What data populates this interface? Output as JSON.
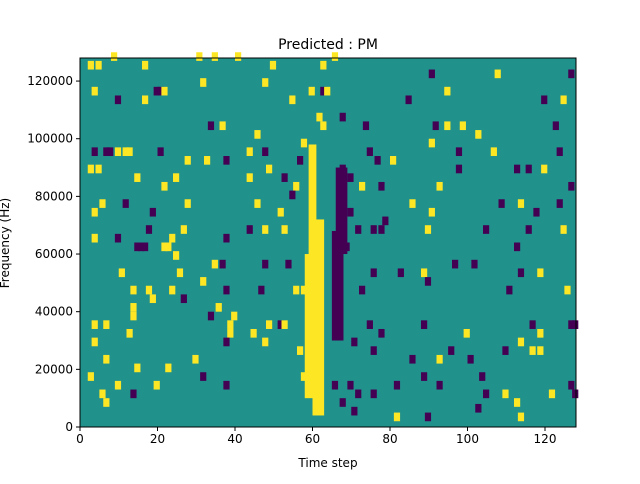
{
  "chart_data": {
    "type": "heatmap",
    "title": "Predicted : PM",
    "xlabel": "Time step",
    "ylabel": "Frequency (Hz)",
    "xlim": [
      0,
      128
    ],
    "ylim": [
      0,
      128000
    ],
    "x_ticks": [
      0,
      20,
      40,
      60,
      80,
      100,
      120
    ],
    "y_ticks": [
      0,
      20000,
      40000,
      60000,
      80000,
      100000,
      120000
    ],
    "x_tick_labels": [
      "0",
      "20",
      "40",
      "60",
      "80",
      "100",
      "120"
    ],
    "y_tick_labels": [
      "0",
      "20000",
      "40000",
      "60000",
      "80000",
      "100000",
      "120000"
    ],
    "grid": false,
    "background_value": 0,
    "value_colors": {
      "-1": "#440154",
      "0": "#21918c",
      "1": "#fde725"
    },
    "bands": [
      {
        "x": [
          59,
          61
        ],
        "y": [
          12000,
          98000
        ],
        "value": 1
      },
      {
        "x": [
          60,
          63
        ],
        "y": [
          4000,
          72000
        ],
        "value": 1
      },
      {
        "x": [
          58,
          60
        ],
        "y": [
          10000,
          60000
        ],
        "value": 1
      },
      {
        "x": [
          66,
          69
        ],
        "y": [
          60000,
          90000
        ],
        "value": -1
      },
      {
        "x": [
          65,
          68
        ],
        "y": [
          30000,
          68000
        ],
        "value": -1
      }
    ],
    "cells": [
      [
        3,
        124000,
        1
      ],
      [
        5,
        124000,
        1
      ],
      [
        9,
        127000,
        1
      ],
      [
        17,
        124000,
        1
      ],
      [
        31,
        127000,
        1
      ],
      [
        35,
        127000,
        1
      ],
      [
        41,
        127000,
        1
      ],
      [
        50,
        124000,
        1
      ],
      [
        63,
        124000,
        1
      ],
      [
        66,
        127000,
        1
      ],
      [
        91,
        121000,
        -1
      ],
      [
        108,
        121000,
        1
      ],
      [
        127,
        121000,
        -1
      ],
      [
        4,
        115000,
        1
      ],
      [
        10,
        112000,
        -1
      ],
      [
        17,
        112000,
        1
      ],
      [
        20,
        115000,
        -1
      ],
      [
        21,
        115000,
        -1
      ],
      [
        22,
        115000,
        1
      ],
      [
        32,
        118000,
        1
      ],
      [
        48,
        118000,
        1
      ],
      [
        55,
        112000,
        1
      ],
      [
        60,
        115000,
        1
      ],
      [
        63,
        115000,
        -1
      ],
      [
        64,
        115000,
        1
      ],
      [
        85,
        112000,
        -1
      ],
      [
        95,
        115000,
        1
      ],
      [
        120,
        112000,
        -1
      ],
      [
        125,
        112000,
        1
      ],
      [
        34,
        103000,
        -1
      ],
      [
        37,
        103000,
        1
      ],
      [
        46,
        100000,
        1
      ],
      [
        58,
        97000,
        1
      ],
      [
        62,
        106000,
        1
      ],
      [
        63,
        103000,
        1
      ],
      [
        68,
        106000,
        -1
      ],
      [
        74,
        103000,
        -1
      ],
      [
        92,
        103000,
        -1
      ],
      [
        95,
        103000,
        1
      ],
      [
        99,
        103000,
        1
      ],
      [
        103,
        100000,
        1
      ],
      [
        123,
        103000,
        -1
      ],
      [
        4,
        94000,
        -1
      ],
      [
        7,
        94000,
        -1
      ],
      [
        8,
        94000,
        -1
      ],
      [
        10,
        94000,
        1
      ],
      [
        12,
        94000,
        1
      ],
      [
        13,
        94000,
        1
      ],
      [
        21,
        94000,
        -1
      ],
      [
        28,
        91000,
        1
      ],
      [
        33,
        91000,
        1
      ],
      [
        38,
        91000,
        -1
      ],
      [
        44,
        94000,
        1
      ],
      [
        48,
        94000,
        -1
      ],
      [
        57,
        91000,
        -1
      ],
      [
        75,
        94000,
        -1
      ],
      [
        77,
        91000,
        -1
      ],
      [
        81,
        91000,
        1
      ],
      [
        91,
        97000,
        1
      ],
      [
        98,
        94000,
        -1
      ],
      [
        107,
        94000,
        1
      ],
      [
        124,
        94000,
        -1
      ],
      [
        3,
        88000,
        1
      ],
      [
        5,
        88000,
        1
      ],
      [
        15,
        85000,
        1
      ],
      [
        22,
        82000,
        1
      ],
      [
        25,
        85000,
        1
      ],
      [
        44,
        85000,
        1
      ],
      [
        49,
        88000,
        1
      ],
      [
        53,
        85000,
        -1
      ],
      [
        68,
        88000,
        -1
      ],
      [
        73,
        82000,
        1
      ],
      [
        78,
        82000,
        -1
      ],
      [
        93,
        82000,
        1
      ],
      [
        98,
        88000,
        -1
      ],
      [
        113,
        88000,
        -1
      ],
      [
        116,
        88000,
        -1
      ],
      [
        120,
        88000,
        1
      ],
      [
        56,
        82000,
        1
      ],
      [
        70,
        85000,
        -1
      ],
      [
        4,
        73000,
        1
      ],
      [
        6,
        76000,
        1
      ],
      [
        12,
        76000,
        -1
      ],
      [
        19,
        73000,
        -1
      ],
      [
        28,
        76000,
        1
      ],
      [
        46,
        76000,
        1
      ],
      [
        52,
        73000,
        1
      ],
      [
        55,
        79000,
        -1
      ],
      [
        70,
        73000,
        -1
      ],
      [
        79,
        70000,
        -1
      ],
      [
        86,
        76000,
        1
      ],
      [
        91,
        73000,
        1
      ],
      [
        109,
        76000,
        -1
      ],
      [
        114,
        76000,
        1
      ],
      [
        118,
        73000,
        -1
      ],
      [
        124,
        76000,
        -1
      ],
      [
        127,
        82000,
        -1
      ],
      [
        4,
        64000,
        1
      ],
      [
        10,
        64000,
        -1
      ],
      [
        18,
        67000,
        -1
      ],
      [
        24,
        64000,
        1
      ],
      [
        27,
        67000,
        1
      ],
      [
        38,
        64000,
        -1
      ],
      [
        44,
        67000,
        -1
      ],
      [
        48,
        67000,
        1
      ],
      [
        53,
        67000,
        1
      ],
      [
        72,
        67000,
        -1
      ],
      [
        76,
        67000,
        -1
      ],
      [
        78,
        67000,
        -1
      ],
      [
        90,
        67000,
        1
      ],
      [
        105,
        67000,
        -1
      ],
      [
        116,
        67000,
        -1
      ],
      [
        125,
        67000,
        1
      ],
      [
        15,
        61000,
        -1
      ],
      [
        16,
        61000,
        -1
      ],
      [
        17,
        61000,
        -1
      ],
      [
        22,
        61000,
        1
      ],
      [
        23,
        61000,
        1
      ],
      [
        25,
        58000,
        1
      ],
      [
        35,
        55000,
        1
      ],
      [
        37,
        55000,
        -1
      ],
      [
        48,
        55000,
        -1
      ],
      [
        54,
        55000,
        -1
      ],
      [
        69,
        61000,
        -1
      ],
      [
        76,
        52000,
        -1
      ],
      [
        83,
        52000,
        -1
      ],
      [
        89,
        52000,
        1
      ],
      [
        97,
        55000,
        -1
      ],
      [
        102,
        55000,
        -1
      ],
      [
        113,
        61000,
        -1
      ],
      [
        114,
        52000,
        -1
      ],
      [
        119,
        52000,
        1
      ],
      [
        11,
        52000,
        1
      ],
      [
        26,
        52000,
        1
      ],
      [
        32,
        49000,
        1
      ],
      [
        38,
        46000,
        -1
      ],
      [
        47,
        46000,
        -1
      ],
      [
        56,
        46000,
        1
      ],
      [
        58,
        46000,
        1
      ],
      [
        73,
        46000,
        -1
      ],
      [
        90,
        49000,
        -1
      ],
      [
        111,
        46000,
        -1
      ],
      [
        126,
        46000,
        1
      ],
      [
        14,
        46000,
        1
      ],
      [
        18,
        46000,
        1
      ],
      [
        24,
        46000,
        1
      ],
      [
        19,
        43000,
        1
      ],
      [
        27,
        43000,
        -1
      ],
      [
        14,
        40000,
        1
      ],
      [
        14,
        37000,
        1
      ],
      [
        34,
        37000,
        -1
      ],
      [
        36,
        40000,
        1
      ],
      [
        40,
        37000,
        1
      ],
      [
        4,
        34000,
        1
      ],
      [
        7,
        34000,
        1
      ],
      [
        13,
        31000,
        1
      ],
      [
        39,
        31000,
        1
      ],
      [
        39,
        34000,
        1
      ],
      [
        45,
        31000,
        1
      ],
      [
        49,
        34000,
        1
      ],
      [
        52,
        34000,
        -1
      ],
      [
        53,
        34000,
        1
      ],
      [
        75,
        34000,
        -1
      ],
      [
        78,
        31000,
        -1
      ],
      [
        89,
        34000,
        -1
      ],
      [
        100,
        31000,
        1
      ],
      [
        117,
        34000,
        -1
      ],
      [
        119,
        31000,
        1
      ],
      [
        127,
        34000,
        -1
      ],
      [
        128,
        34000,
        -1
      ],
      [
        4,
        28000,
        1
      ],
      [
        7,
        22000,
        1
      ],
      [
        15,
        19000,
        1
      ],
      [
        23,
        19000,
        1
      ],
      [
        30,
        22000,
        1
      ],
      [
        38,
        28000,
        -1
      ],
      [
        48,
        28000,
        1
      ],
      [
        57,
        25000,
        1
      ],
      [
        71,
        28000,
        -1
      ],
      [
        76,
        25000,
        -1
      ],
      [
        86,
        22000,
        -1
      ],
      [
        93,
        22000,
        1
      ],
      [
        96,
        25000,
        -1
      ],
      [
        101,
        22000,
        -1
      ],
      [
        110,
        25000,
        -1
      ],
      [
        114,
        28000,
        1
      ],
      [
        117,
        25000,
        1
      ],
      [
        119,
        25000,
        1
      ],
      [
        3,
        16000,
        1
      ],
      [
        6,
        10000,
        1
      ],
      [
        7,
        7000,
        1
      ],
      [
        10,
        13000,
        1
      ],
      [
        14,
        10000,
        -1
      ],
      [
        20,
        13000,
        1
      ],
      [
        32,
        16000,
        -1
      ],
      [
        38,
        13000,
        -1
      ],
      [
        70,
        13000,
        -1
      ],
      [
        72,
        10000,
        -1
      ],
      [
        76,
        10000,
        -1
      ],
      [
        82,
        13000,
        -1
      ],
      [
        89,
        16000,
        -1
      ],
      [
        93,
        13000,
        -1
      ],
      [
        104,
        16000,
        -1
      ],
      [
        105,
        10000,
        -1
      ],
      [
        110,
        10000,
        1
      ],
      [
        113,
        7000,
        1
      ],
      [
        58,
        16000,
        1
      ],
      [
        62,
        19000,
        1
      ],
      [
        66,
        13000,
        -1
      ],
      [
        68,
        7000,
        -1
      ],
      [
        71,
        4000,
        -1
      ],
      [
        82,
        2000,
        1
      ],
      [
        90,
        2000,
        -1
      ],
      [
        103,
        5000,
        -1
      ],
      [
        114,
        2000,
        1
      ],
      [
        122,
        10000,
        1
      ],
      [
        127,
        13000,
        -1
      ],
      [
        128,
        10000,
        -1
      ]
    ]
  }
}
